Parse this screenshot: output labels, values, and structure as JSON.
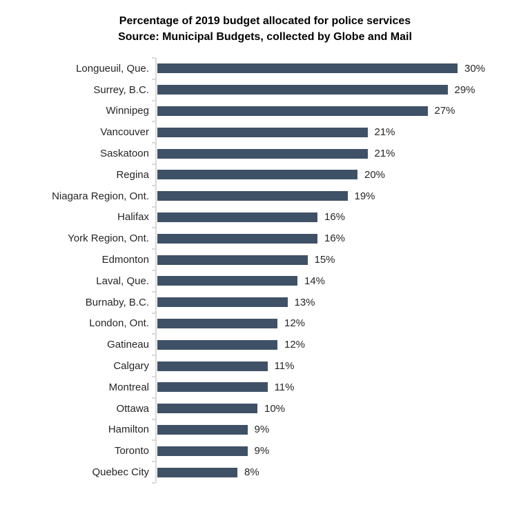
{
  "title": {
    "line1": "Percentage of 2019 budget allocated for police services",
    "line2": "Source: Municipal Budgets, collected by Globe and Mail"
  },
  "chart_data": {
    "type": "bar",
    "orientation": "horizontal",
    "title": "Percentage of 2019 budget allocated for police services",
    "subtitle": "Source: Municipal Budgets, collected by Globe and Mail",
    "xlabel": "",
    "ylabel": "",
    "unit": "%",
    "xlim": [
      0,
      35
    ],
    "grid": false,
    "legend": null,
    "bar_color": "#3f5166",
    "axis_color": "#d8d8d8",
    "label_color": "#262626",
    "categories": [
      "Longueuil, Que.",
      "Surrey, B.C.",
      "Winnipeg",
      "Vancouver",
      "Saskatoon",
      "Regina",
      "Niagara Region, Ont.",
      "Halifax",
      "York Region, Ont.",
      "Edmonton",
      "Laval, Que.",
      "Burnaby, B.C.",
      "London, Ont.",
      "Gatineau",
      "Calgary",
      "Montreal",
      "Ottawa",
      "Hamilton",
      "Toronto",
      "Quebec City"
    ],
    "values": [
      30,
      29,
      27,
      21,
      21,
      20,
      19,
      16,
      16,
      15,
      14,
      13,
      12,
      12,
      11,
      11,
      10,
      9,
      9,
      8
    ],
    "value_labels": [
      "30%",
      "29%",
      "27%",
      "21%",
      "21%",
      "20%",
      "19%",
      "16%",
      "16%",
      "15%",
      "14%",
      "13%",
      "12%",
      "12%",
      "11%",
      "11%",
      "10%",
      "9%",
      "9%",
      "8%"
    ]
  }
}
